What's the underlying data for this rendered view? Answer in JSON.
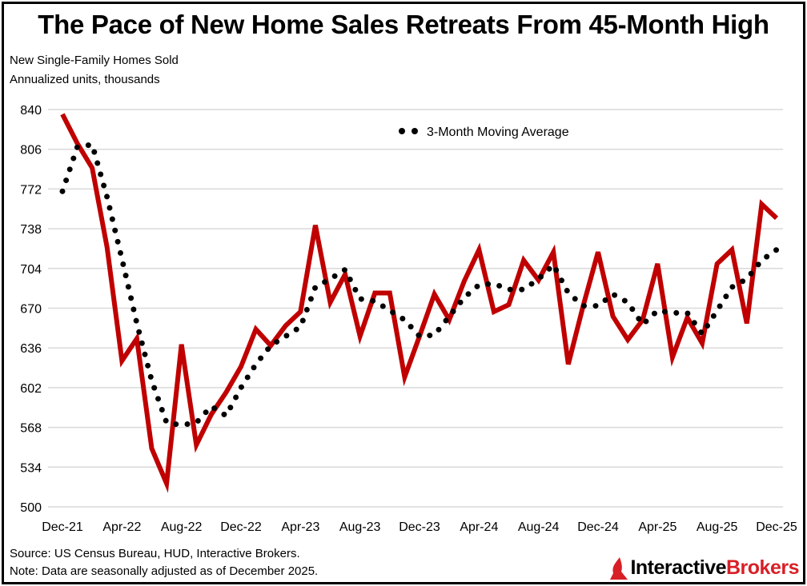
{
  "title": "The Pace of New Home Sales Retreats From 45-Month High",
  "subtitle_lines": [
    "New Single-Family Homes Sold",
    "Annualized units, thousands"
  ],
  "footer": {
    "source": "Source: US Census Bureau, HUD, Interactive Brokers.",
    "note": "Note: Data are seasonally adjusted as of December 2025."
  },
  "logo": {
    "text_a": "Interactive",
    "text_b": "Brokers",
    "accent": "#d81f26"
  },
  "chart_data": {
    "type": "line",
    "title": "The Pace of New Home Sales Retreats From 45-Month High",
    "ylabel": "Annualized units, thousands",
    "ylim": [
      500,
      840
    ],
    "yticks": [
      500,
      534,
      568,
      602,
      636,
      670,
      704,
      738,
      772,
      806,
      840
    ],
    "x_tick_labels": [
      "Dec-21",
      "Apr-22",
      "Aug-22",
      "Dec-22",
      "Apr-23",
      "Aug-23",
      "Dec-23",
      "Apr-24",
      "Aug-24",
      "Dec-24",
      "Apr-25",
      "Aug-25",
      "Dec-25"
    ],
    "x_start": "Dec-21",
    "x_end": "Dec-25",
    "grid": "horizontal",
    "legend_position": "top-center",
    "series": [
      {
        "style": "solid",
        "color": "#c00000",
        "values": [
          836,
          811,
          790,
          722,
          625,
          644,
          550,
          520,
          639,
          553,
          579,
          598,
          620,
          652,
          638,
          655,
          667,
          741,
          675,
          699,
          646,
          683,
          683,
          611,
          646,
          682,
          660,
          693,
          720,
          667,
          673,
          711,
          694,
          718,
          622,
          672,
          718,
          663,
          643,
          660,
          708,
          628,
          662,
          640,
          708,
          720,
          657,
          759,
          747
        ]
      },
      {
        "name": "3-Month Moving Average",
        "style": "dotted",
        "color": "#000000",
        "values": [
          770,
          808,
          810,
          765,
          712,
          657,
          608,
          572,
          570,
          572,
          586,
          578,
          602,
          622,
          638,
          646,
          654,
          688,
          695,
          703,
          678,
          676,
          668,
          660,
          646,
          647,
          663,
          679,
          690,
          691,
          686,
          686,
          695,
          707,
          683,
          672,
          672,
          682,
          675,
          656,
          668,
          666,
          666,
          648,
          668,
          688,
          695,
          711,
          720
        ]
      }
    ]
  }
}
